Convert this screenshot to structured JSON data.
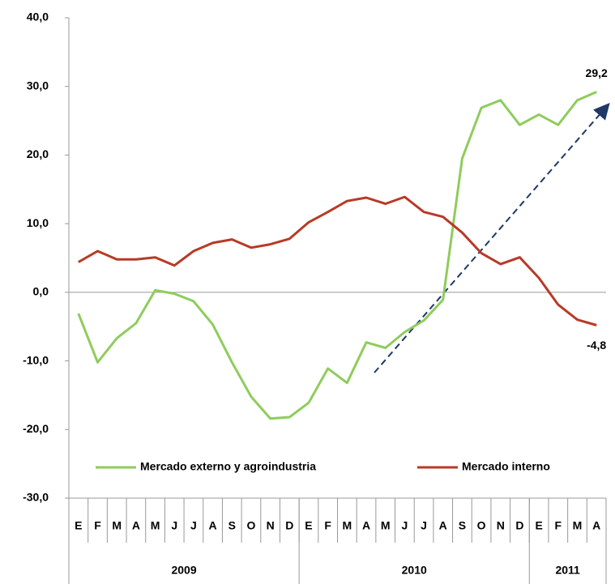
{
  "chart_data": {
    "type": "line",
    "categories": [
      "E",
      "F",
      "M",
      "A",
      "M",
      "J",
      "J",
      "A",
      "S",
      "O",
      "N",
      "D",
      "E",
      "F",
      "M",
      "A",
      "M",
      "J",
      "J",
      "A",
      "S",
      "O",
      "N",
      "D",
      "E",
      "F",
      "M",
      "A"
    ],
    "x_groups": [
      {
        "label": "2009",
        "count": 12
      },
      {
        "label": "2010",
        "count": 12
      },
      {
        "label": "2011",
        "count": 4
      }
    ],
    "series": [
      {
        "name": "Mercado externo y agroindustria",
        "color": "#8fcc5c",
        "values": [
          -3.1,
          -10.2,
          -6.7,
          -4.5,
          0.3,
          -0.2,
          -1.3,
          -4.7,
          -10.2,
          -15.2,
          -18.4,
          -18.2,
          -16.1,
          -11.1,
          -13.2,
          -7.3,
          -8.1,
          -5.8,
          -4.1,
          -1.1,
          19.5,
          26.9,
          28.0,
          24.4,
          25.9,
          24.4,
          28.0,
          29.2
        ],
        "value_labels": [
          null,
          null,
          null,
          null,
          null,
          null,
          null,
          null,
          null,
          null,
          null,
          null,
          null,
          null,
          null,
          null,
          null,
          null,
          null,
          null,
          null,
          null,
          null,
          null,
          null,
          null,
          null,
          "29,2"
        ]
      },
      {
        "name": "Mercado interno",
        "color": "#b83a26",
        "values": [
          4.4,
          6.0,
          4.8,
          4.8,
          5.1,
          3.9,
          6.0,
          7.2,
          7.7,
          6.5,
          7.0,
          7.8,
          10.2,
          11.7,
          13.3,
          13.8,
          12.9,
          13.9,
          11.7,
          11.0,
          8.7,
          5.7,
          4.1,
          5.1,
          2.1,
          -1.8,
          -4.0,
          -4.8
        ],
        "value_labels": [
          null,
          null,
          null,
          null,
          null,
          null,
          null,
          null,
          null,
          null,
          null,
          null,
          null,
          null,
          null,
          null,
          null,
          null,
          null,
          null,
          null,
          null,
          null,
          null,
          null,
          null,
          null,
          "-4,8"
        ]
      }
    ],
    "ylim": [
      -30,
      40
    ],
    "yticks": [
      {
        "value": -30,
        "label": "-30,0"
      },
      {
        "value": -20,
        "label": "-20,0"
      },
      {
        "value": -10,
        "label": "-10,0"
      },
      {
        "value": 0,
        "label": "0,0"
      },
      {
        "value": 10,
        "label": "10,0"
      },
      {
        "value": 20,
        "label": "20,0"
      },
      {
        "value": 30,
        "label": "30,0"
      },
      {
        "value": 40,
        "label": "40,0"
      }
    ],
    "legend": "bottom"
  }
}
